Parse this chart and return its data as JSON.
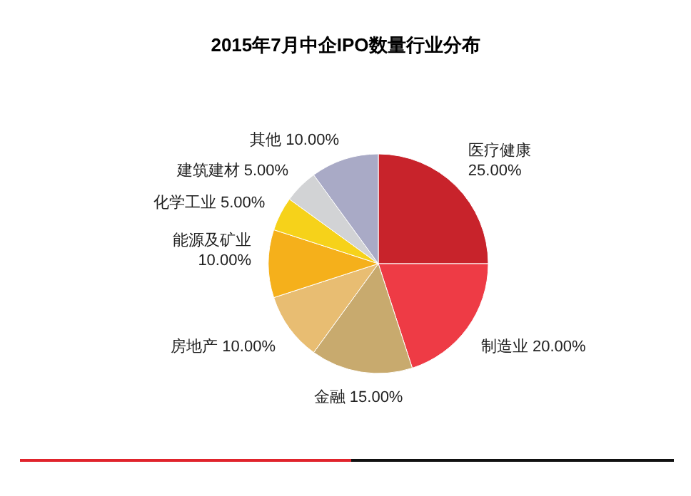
{
  "chart_data": {
    "type": "pie",
    "title": "2015年7月中企IPO数量行业分布",
    "categories": [
      "医疗健康",
      "制造业",
      "金融",
      "房地产",
      "能源及矿业",
      "化学工业",
      "建筑建材",
      "其他"
    ],
    "values": [
      25,
      20,
      15,
      10,
      10,
      5,
      5,
      10
    ],
    "value_labels": [
      "25.00%",
      "20.00%",
      "15.00%",
      "10.00%",
      "10.00%",
      "5.00%",
      "5.00%",
      "10.00%"
    ],
    "colors": [
      "#c8232b",
      "#ee3b45",
      "#c8aa6e",
      "#e8bd72",
      "#f5b01b",
      "#f6d21a",
      "#d2d3d5",
      "#a9aac6"
    ]
  }
}
